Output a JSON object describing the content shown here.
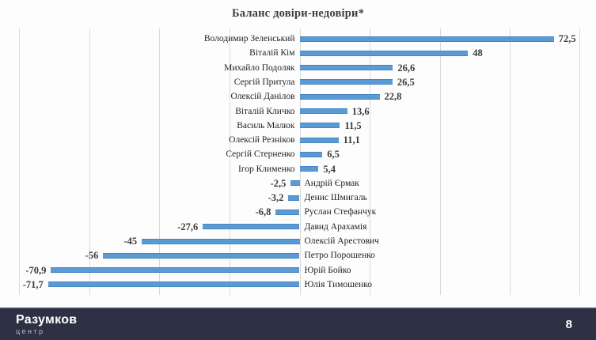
{
  "page": {
    "background": "#fdfdfe"
  },
  "chart_data": {
    "type": "bar",
    "orientation": "horizontal",
    "title": "Баланс довіри-недовіри*",
    "categories": [
      "Володимир Зеленський",
      "Віталій Кім",
      "Михайло Подоляк",
      "Сергій Притула",
      "Олексій Данілов",
      "Віталій Кличко",
      "Василь Малюк",
      "Олексій Резніков",
      "Сергій Стерненко",
      "Ігор Клименко",
      "Андрій Єрмак",
      "Денис Шмигаль",
      "Руслан Стефанчук",
      "Давид Арахамія",
      "Олексій Арестович",
      "Петро Порошенко",
      "Юрій Бойко",
      "Юлія Тимошенко"
    ],
    "values": [
      72.5,
      48,
      26.6,
      26.5,
      22.8,
      13.6,
      11.5,
      11.1,
      6.5,
      5.4,
      -2.5,
      -3.2,
      -6.8,
      -27.6,
      -45,
      -56,
      -70.9,
      -71.7
    ],
    "value_labels": [
      "72,5",
      "48",
      "26,6",
      "26,5",
      "22,8",
      "13,6",
      "11,5",
      "11,1",
      "6,5",
      "5,4",
      "-2,5",
      "-3,2",
      "-6,8",
      "-27,6",
      "-45",
      "-56",
      "-70,9",
      "-71,7"
    ],
    "xlabel": "",
    "ylabel": "",
    "xlim": [
      -80,
      80
    ],
    "gridline_step": 20,
    "grid": true,
    "legend": "none",
    "bar_color": "#5B9BD5",
    "gridline_color": "#D9D9D9",
    "label_color": "#1F1F1F",
    "value_color": "#3B3B3B"
  },
  "footer": {
    "brand_name": "Разумков",
    "brand_sub": "центр",
    "page_number": "8",
    "background": "#2E3144"
  }
}
